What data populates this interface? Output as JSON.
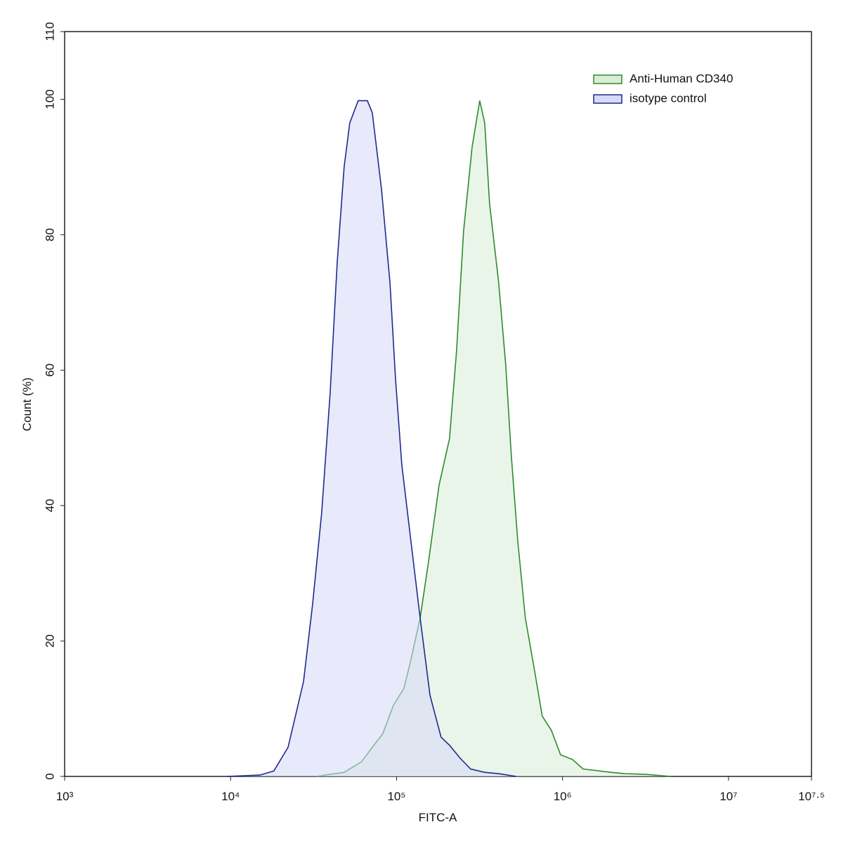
{
  "chart_data": {
    "type": "histogram-overlay",
    "x_label": "FITC-A",
    "y_label": "Count  (%)",
    "x_scale": "log",
    "xlim": [
      1000,
      31622776.6
    ],
    "ylim": [
      0,
      110
    ],
    "xticks": [
      {
        "value": 1000,
        "label": "10³"
      },
      {
        "value": 10000,
        "label": "10⁴"
      },
      {
        "value": 100000,
        "label": "10⁵"
      },
      {
        "value": 1000000,
        "label": "10⁶"
      },
      {
        "value": 10000000,
        "label": "10⁷"
      },
      {
        "value": 31622776.6,
        "label": "10⁷·⁵"
      }
    ],
    "yticks": [
      0,
      20,
      40,
      60,
      80,
      100,
      110
    ],
    "legend": "top-right",
    "series": [
      {
        "name": "Anti-Human CD340",
        "color": "#2e8b2e",
        "fill": "#d8ecd8",
        "x": [
          32700,
          48300,
          61700,
          71400,
          82600,
          95700,
          110700,
          122000,
          138700,
          155700,
          180200,
          208400,
          229700,
          253300,
          285100,
          317100,
          339600,
          363300,
          412100,
          454600,
          491700,
          537000,
          597000,
          684000,
          755000,
          857000,
          972000,
          1148000,
          1328000,
          1960000,
          2381000,
          3191000,
          4488000
        ],
        "values": [
          0,
          0.6,
          2.2,
          4.3,
          6.3,
          10.5,
          13,
          17.2,
          23.4,
          31.7,
          43,
          49.9,
          62.8,
          80.5,
          92.9,
          99.8,
          96.5,
          84.6,
          73,
          60.8,
          47.3,
          34.8,
          23.4,
          15.1,
          8.9,
          6.8,
          3.2,
          2.5,
          1.1,
          0.6,
          0.4,
          0.3,
          0
        ]
      },
      {
        "name": "isotype control",
        "color": "#1f2a8f",
        "fill": "#d6d9f7",
        "x": [
          9500,
          15000,
          18200,
          22200,
          27500,
          31200,
          35400,
          39800,
          43900,
          48300,
          52200,
          58700,
          66700,
          71400,
          81100,
          91200,
          98600,
          107500,
          122000,
          138700,
          158900,
          185400,
          208400,
          241500,
          279300,
          339600,
          412100,
          526000
        ],
        "values": [
          0,
          0.2,
          0.8,
          4.3,
          14,
          25.5,
          39,
          56.6,
          76,
          90,
          96.5,
          99.8,
          99.8,
          98,
          86.7,
          73,
          58.6,
          46,
          34.8,
          23.4,
          12,
          5.8,
          4.6,
          2.7,
          1.1,
          0.6,
          0.4,
          0
        ]
      }
    ]
  }
}
